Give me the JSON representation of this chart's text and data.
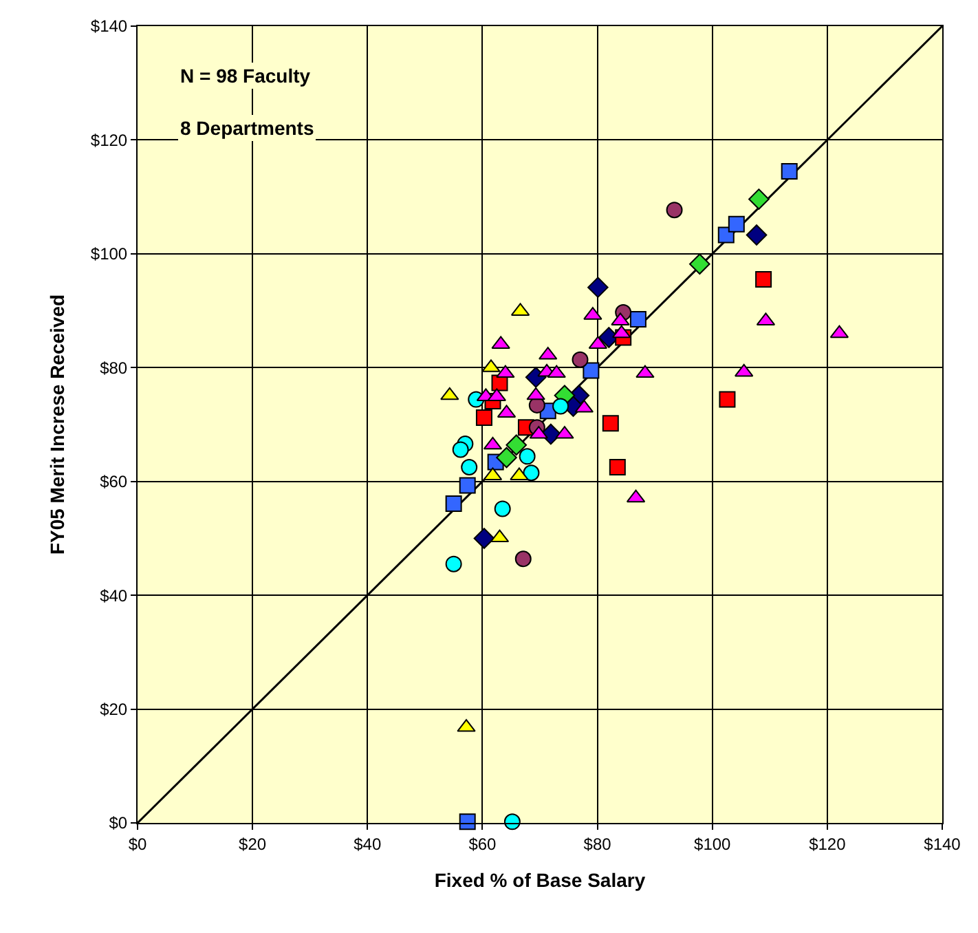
{
  "chart_data": {
    "type": "scatter",
    "xlabel": "Fixed % of Base Salary",
    "ylabel": "FY05 Merit Increse Received",
    "annotations": [
      "N = 98 Faculty",
      "8 Departments"
    ],
    "xlim": [
      0,
      140
    ],
    "ylim": [
      0,
      140
    ],
    "xticks": [
      {
        "value": 0,
        "label": "$0"
      },
      {
        "value": 20,
        "label": "$20"
      },
      {
        "value": 40,
        "label": "$40"
      },
      {
        "value": 60,
        "label": "$60"
      },
      {
        "value": 80,
        "label": "$80"
      },
      {
        "value": 100,
        "label": "$100"
      },
      {
        "value": 120,
        "label": "$120"
      },
      {
        "value": 140,
        "label": "$140"
      }
    ],
    "yticks": [
      {
        "value": 0,
        "label": "$0"
      },
      {
        "value": 20,
        "label": "$20"
      },
      {
        "value": 40,
        "label": "$40"
      },
      {
        "value": 60,
        "label": "$60"
      },
      {
        "value": 80,
        "label": "$80"
      },
      {
        "value": 100,
        "label": "$100"
      },
      {
        "value": 120,
        "label": "$120"
      },
      {
        "value": 140,
        "label": "$140"
      }
    ],
    "grid": true,
    "legend": false,
    "series": [
      {
        "type": "line",
        "color": "#000000",
        "marker": "none",
        "x": [
          0,
          140
        ],
        "values": [
          0,
          140
        ]
      },
      {
        "color": "#3366ff",
        "marker": "square",
        "x": [
          57.4,
          55,
          57.4,
          62.3,
          65.7,
          71.4,
          78.9,
          87.1,
          102.4,
          104.2,
          113.4
        ],
        "values": [
          0.2,
          56.1,
          59.3,
          63.4,
          null,
          72.4,
          79.5,
          88.5,
          103.3,
          105.2,
          114.5
        ]
      },
      {
        "color": "#000080",
        "marker": "diamond",
        "x": [
          60.3,
          80.1,
          107.7,
          82,
          69.3,
          76.8,
          75.8,
          71.9
        ],
        "values": [
          50,
          94.1,
          103.3,
          85.3,
          78.3,
          75.1,
          73.2,
          68.3
        ]
      },
      {
        "color": "#33dd33",
        "marker": "diamond",
        "x": [
          108.1,
          97.8,
          74.3,
          65.9,
          64.2
        ],
        "values": [
          109.6,
          98.2,
          75.1,
          66.4,
          64.2
        ]
      },
      {
        "color": "#ff0000",
        "marker": "square",
        "x": [
          108.9,
          102.6,
          82.3,
          83.5,
          84.5,
          63,
          60.3,
          66.4,
          67.6,
          61.8
        ],
        "values": [
          95.5,
          74.4,
          70.2,
          62.5,
          85.3,
          77.3,
          71.2,
          null,
          69.5,
          74.1
        ]
      },
      {
        "color": "#993366",
        "marker": "circle",
        "x": [
          93.4,
          84.5,
          77,
          69.5,
          69.5,
          67.1
        ],
        "values": [
          107.7,
          89.7,
          81.4,
          73.4,
          69.5,
          46.4
        ]
      },
      {
        "color": "#00ffff",
        "marker": "circle",
        "x": [
          55,
          65.2,
          63.5,
          68.5,
          67.8,
          57.7,
          57,
          56.2,
          58.9,
          73.6
        ],
        "values": [
          45.5,
          0.2,
          55.2,
          61.5,
          64.4,
          62.5,
          66.6,
          65.6,
          74.4,
          73.2
        ]
      },
      {
        "color": "#ffff00",
        "marker": "triangle",
        "x": [
          54.3,
          66.6,
          61.5,
          61.8,
          66.4,
          63,
          57.2
        ],
        "values": [
          75.1,
          89.9,
          80,
          61,
          61,
          50.1,
          16.8
        ]
      },
      {
        "color": "#ff00ff",
        "marker": "triangle",
        "x": [
          79.2,
          84,
          84.2,
          80.1,
          63.2,
          71.4,
          71.2,
          72.9,
          64,
          88.3,
          60.6,
          62.5,
          64.2,
          69.3,
          77.7,
          61.8,
          69.8,
          74.3,
          86.7,
          109.3,
          122.1,
          105.5
        ],
        "values": [
          89.2,
          88.2,
          86,
          84.1,
          84.1,
          82.2,
          79.2,
          79,
          79,
          79,
          74.9,
          74.9,
          72,
          75.1,
          72.9,
          66.4,
          68.3,
          68.3,
          57.1,
          88.2,
          86,
          79.2
        ]
      }
    ]
  }
}
